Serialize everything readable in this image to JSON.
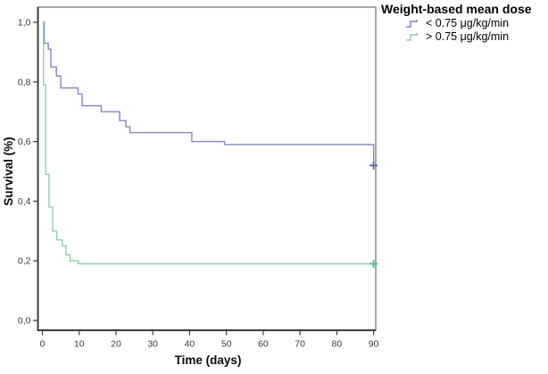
{
  "figure": {
    "background": "#ffffff",
    "axis_color": "#3c3c3c",
    "frame_color": "#6f6f6f",
    "tick_label_color": "#3a3a3a"
  },
  "chart_data": {
    "type": "line",
    "subtype": "kaplan_meier_step",
    "title": "",
    "xlabel": "Time (days)",
    "ylabel": "Survival (%)",
    "xlim": [
      0,
      90
    ],
    "ylim": [
      0.0,
      1.0
    ],
    "grid": false,
    "legend": {
      "title": "Weight-based mean dose",
      "position": "outside-top-right"
    },
    "xticks": {
      "values": [
        0,
        10,
        20,
        30,
        40,
        50,
        60,
        70,
        80,
        90
      ],
      "labels": [
        "0",
        "10",
        "20",
        "30",
        "40",
        "50",
        "60",
        "70",
        "80",
        "90"
      ]
    },
    "yticks": {
      "values": [
        0.0,
        0.2,
        0.4,
        0.6,
        0.8,
        1.0
      ],
      "labels": [
        "0,0",
        "0,2",
        "0,4",
        "0,6",
        "0,8",
        "1,0"
      ]
    },
    "series": [
      {
        "name": "< 0.75 μg/kg/min",
        "color": "#8289c0",
        "marker_color": "#5c68ad",
        "points": [
          [
            0,
            1.0
          ],
          [
            0.5,
            0.93
          ],
          [
            1.6,
            0.91
          ],
          [
            2.3,
            0.85
          ],
          [
            3.8,
            0.82
          ],
          [
            5,
            0.78
          ],
          [
            9.7,
            0.76
          ],
          [
            10.8,
            0.72
          ],
          [
            16,
            0.7
          ],
          [
            21,
            0.67
          ],
          [
            22.7,
            0.65
          ],
          [
            23.8,
            0.63
          ],
          [
            40.6,
            0.6
          ],
          [
            49.5,
            0.59
          ],
          [
            90,
            0.52
          ]
        ],
        "censored": [
          [
            90,
            0.52
          ]
        ]
      },
      {
        "name": "> 0.75 μg/kg/min",
        "color": "#8fd0a6",
        "marker_color": "#4fbc82",
        "points": [
          [
            0,
            1.0
          ],
          [
            0.3,
            0.79
          ],
          [
            0.9,
            0.49
          ],
          [
            1.8,
            0.38
          ],
          [
            2.8,
            0.3
          ],
          [
            3.9,
            0.27
          ],
          [
            5.4,
            0.25
          ],
          [
            6.4,
            0.22
          ],
          [
            7.5,
            0.2
          ],
          [
            9.8,
            0.19
          ],
          [
            90,
            0.19
          ]
        ],
        "censored": [
          [
            90,
            0.19
          ]
        ]
      }
    ]
  }
}
